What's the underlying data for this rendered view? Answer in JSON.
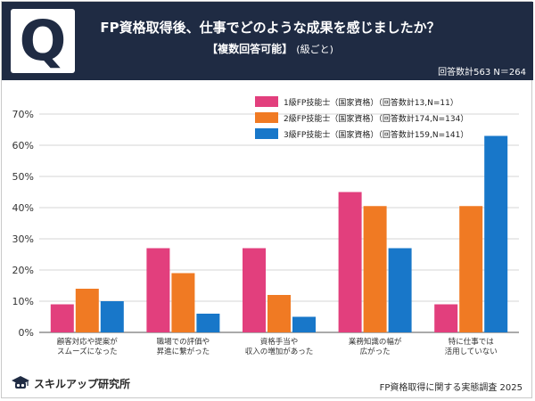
{
  "header": {
    "q_label": "Q",
    "title": "FP資格取得後、仕事でどのような成果を感じましたか？",
    "subtitle": "【複数回答可能】",
    "subtitle_note": "(級ごと)",
    "response_count": "回答数計563 N＝264"
  },
  "footer": {
    "brand": "スキルアップ研究所",
    "source": "FP資格取得に関する実態調査 2025"
  },
  "colors": {
    "header_bg": "#1f2b43",
    "series": [
      "#e23f7d",
      "#f07a23",
      "#1877c9"
    ]
  },
  "chart_data": {
    "type": "bar",
    "categories": [
      [
        "顧客対応や提案が",
        "スムーズになった"
      ],
      [
        "職場での評価や",
        "昇進に繋がった"
      ],
      [
        "資格手当や",
        "収入の増加があった"
      ],
      [
        "業務知識の幅が",
        "広がった"
      ],
      [
        "特に仕事では",
        "活用していない"
      ]
    ],
    "series": [
      {
        "name": "1級FP技能士（国家資格）（回答数計13,N=11）",
        "values": [
          9,
          27,
          27,
          45,
          9
        ]
      },
      {
        "name": "2級FP技能士（国家資格）（回答数計174,N=134）",
        "values": [
          14,
          19,
          12,
          40.5,
          40.5
        ]
      },
      {
        "name": "3級FP技能士（国家資格）（回答数計159,N=141）",
        "values": [
          10,
          6,
          5,
          27,
          63
        ]
      }
    ],
    "yticks": [
      "0%",
      "10%",
      "20%",
      "30%",
      "40%",
      "50%",
      "60%",
      "70%"
    ],
    "ylim": [
      0,
      70
    ],
    "grid": true,
    "legend_position": "top-right"
  }
}
